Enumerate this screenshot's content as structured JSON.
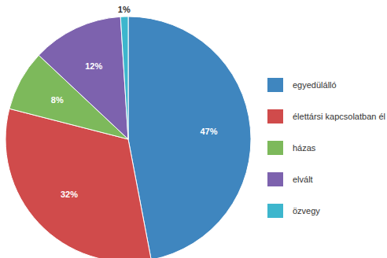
{
  "chart_data": {
    "type": "pie",
    "categories": [
      "egyedülálló",
      "élettársi kapcsolatban él",
      "házas",
      "elvált",
      "özvegy"
    ],
    "values": [
      47,
      32,
      8,
      12,
      1
    ],
    "value_labels": [
      "47%",
      "32%",
      "8%",
      "12%",
      "1%"
    ],
    "colors": [
      "#3f86bf",
      "#d04b4b",
      "#7db95b",
      "#7d62ae",
      "#3db6cd"
    ],
    "data_labels": true,
    "legend": "right"
  }
}
